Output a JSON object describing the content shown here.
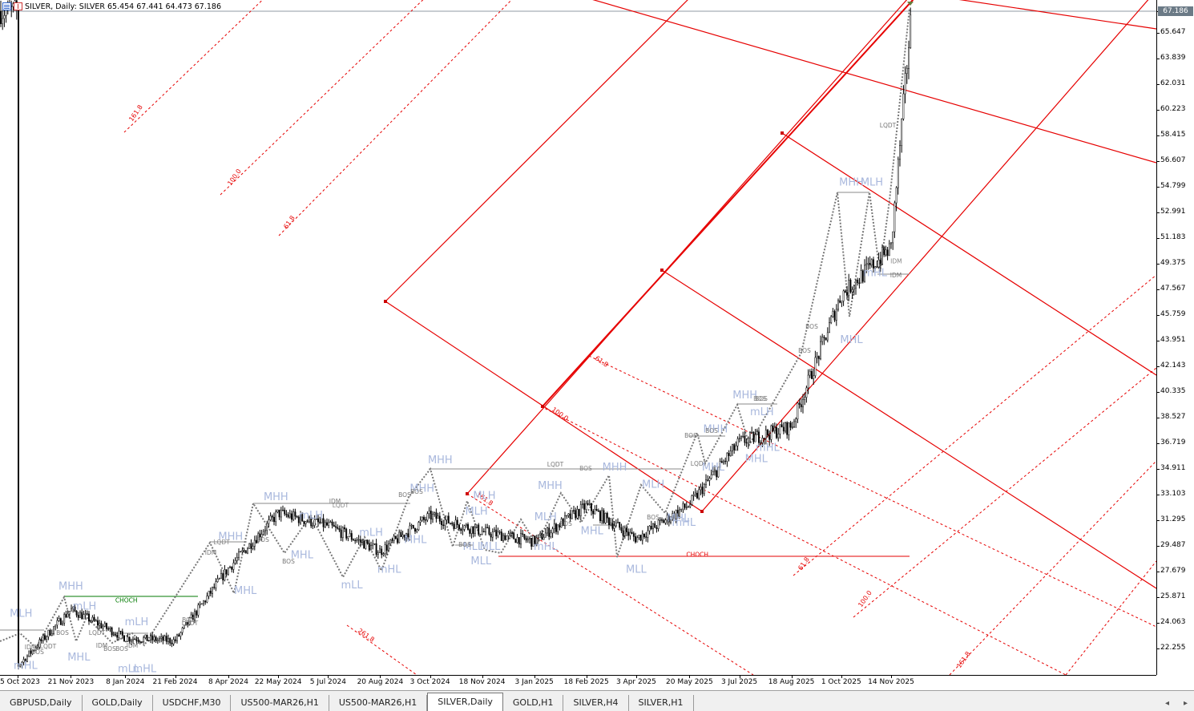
{
  "header": {
    "symbol_text": "SILVER, Daily:  SILVER",
    "ohlc_text": "65.454 67.441 64.473 67.186"
  },
  "price_axis": {
    "labels": [
      "67.186",
      "65.647",
      "63.839",
      "62.031",
      "60.223",
      "58.415",
      "56.607",
      "54.799",
      "52.991",
      "51.183",
      "49.375",
      "47.567",
      "45.759",
      "43.951",
      "42.143",
      "40.335",
      "38.527",
      "36.719",
      "34.911",
      "33.103",
      "31.295",
      "29.487",
      "27.679",
      "25.871",
      "24.063",
      "22.255"
    ],
    "last_price": "67.186",
    "last_price_color": "#6b7a86"
  },
  "time_axis": {
    "labels": [
      "5 Oct 2023",
      "21 Nov 2023",
      "8 Jan 2024",
      "21 Feb 2024",
      "8 Apr 2024",
      "22 May 2024",
      "5 Jul 2024",
      "20 Aug 2024",
      "3 Oct 2024",
      "18 Nov 2024",
      "3 Jan 2025",
      "18 Feb 2025",
      "3 Apr 2025",
      "20 May 2025",
      "3 Jul 2025",
      "18 Aug 2025",
      "1 Oct 2025",
      "14 Nov 2025"
    ]
  },
  "tabs": {
    "items": [
      "GBPUSD,Daily",
      "GOLD,Daily",
      "USDCHF,M30",
      "US500-MAR26,H1",
      "US500-MAR26,H1",
      "SILVER,Daily",
      "GOLD,H1",
      "SILVER,H4",
      "SILVER,H1"
    ],
    "active_index": 5,
    "nav_left": "◂",
    "nav_right": "▸"
  },
  "chart_data": {
    "type": "candlestick",
    "symbol": "SILVER",
    "timeframe": "Daily",
    "last_close": 67.186,
    "ylim": [
      21.2,
      67.5
    ],
    "x_range": [
      "5 Oct 2023",
      "2 Dec 2025"
    ],
    "grid": false,
    "closes_approx": [
      {
        "date": "5 Oct 2023",
        "close": 21.0
      },
      {
        "date": "21 Nov 2023",
        "close": 25.0
      },
      {
        "date": "8 Jan 2024",
        "close": 23.0
      },
      {
        "date": "21 Feb 2024",
        "close": 22.8
      },
      {
        "date": "8 Apr 2024",
        "close": 27.9
      },
      {
        "date": "22 May 2024",
        "close": 31.8
      },
      {
        "date": "5 Jul 2024",
        "close": 30.9
      },
      {
        "date": "20 Aug 2024",
        "close": 29.1
      },
      {
        "date": "3 Oct 2024",
        "close": 31.6
      },
      {
        "date": "18 Nov 2024",
        "close": 30.5
      },
      {
        "date": "3 Jan 2025",
        "close": 29.8
      },
      {
        "date": "18 Feb 2025",
        "close": 32.3
      },
      {
        "date": "3 Apr 2025",
        "close": 30.0
      },
      {
        "date": "20 May 2025",
        "close": 32.4
      },
      {
        "date": "3 Jul 2025",
        "close": 36.8
      },
      {
        "date": "18 Aug 2025",
        "close": 37.9
      },
      {
        "date": "1 Oct 2025",
        "close": 47.2
      },
      {
        "date": "14 Nov 2025",
        "close": 50.5
      },
      {
        "date": "2 Dec 2025",
        "close": 67.186
      }
    ],
    "structure_labels": [
      {
        "text": "MLH",
        "date": "8 Oct 2023",
        "price": 24.5
      },
      {
        "text": "mHL",
        "date": "12 Oct 2023",
        "price": 20.8
      },
      {
        "text": "MHH",
        "date": "21 Nov 2023",
        "price": 26.4
      },
      {
        "text": "mLH",
        "date": "3 Dec 2023",
        "price": 25.0
      },
      {
        "text": "MHL",
        "date": "28 Nov 2023",
        "price": 21.4
      },
      {
        "text": "mLH",
        "date": "18 Jan 2024",
        "price": 23.9
      },
      {
        "text": "mLL",
        "date": "11 Jan 2024",
        "price": 20.6
      },
      {
        "text": "mHL",
        "date": "25 Jan 2024",
        "price": 20.6
      },
      {
        "text": "MHH",
        "date": "10 Apr 2024",
        "price": 29.9
      },
      {
        "text": "MHL",
        "date": "23 Apr 2024",
        "price": 26.1
      },
      {
        "text": "MHH",
        "date": "20 May 2024",
        "price": 32.7
      },
      {
        "text": "mLH",
        "date": "20 Jun 2024",
        "price": 31.4
      },
      {
        "text": "MHL",
        "date": "12 Jun 2024",
        "price": 28.6
      },
      {
        "text": "mLL",
        "date": "26 Jul 2024",
        "price": 26.5
      },
      {
        "text": "mLH",
        "date": "12 Aug 2024",
        "price": 30.2
      },
      {
        "text": "mHL",
        "date": "28 Aug 2024",
        "price": 27.6
      },
      {
        "text": "MHH",
        "date": "26 Sep 2024",
        "price": 33.3
      },
      {
        "text": "MHL",
        "date": "20 Sep 2024",
        "price": 29.7
      },
      {
        "text": "MHH",
        "date": "12 Oct 2024",
        "price": 35.3
      },
      {
        "text": "MLH",
        "date": "13 Nov 2024",
        "price": 31.7
      },
      {
        "text": "MLL",
        "date": "10 Nov 2024",
        "price": 29.2
      },
      {
        "text": "MLL",
        "date": "25 Nov 2024",
        "price": 29.2
      },
      {
        "text": "MLH",
        "date": "20 Nov 2024",
        "price": 32.8
      },
      {
        "text": "MLL",
        "date": "17 Nov 2024",
        "price": 28.2
      },
      {
        "text": "MHH",
        "date": "17 Jan 2025",
        "price": 33.5
      },
      {
        "text": "MLH",
        "date": "13 Jan 2025",
        "price": 31.3
      },
      {
        "text": "mHL",
        "date": "13 Jan 2025",
        "price": 29.2
      },
      {
        "text": "MHL",
        "date": "23 Feb 2025",
        "price": 30.3
      },
      {
        "text": "MHH",
        "date": "15 Mar 2025",
        "price": 34.8
      },
      {
        "text": "MLL",
        "date": "3 Apr 2025",
        "price": 27.6
      },
      {
        "text": "MLH",
        "date": "18 Apr 2025",
        "price": 33.6
      },
      {
        "text": "mHL",
        "date": "15 May 2025",
        "price": 30.9
      },
      {
        "text": "MHL",
        "date": "10 May 2025",
        "price": 31.2
      },
      {
        "text": "MHH",
        "date": "12 Jun 2025",
        "price": 37.5
      },
      {
        "text": "MHL",
        "date": "10 Jun 2025",
        "price": 34.8
      },
      {
        "text": "MHH",
        "date": "8 Jul 2025",
        "price": 39.9
      },
      {
        "text": "mLH",
        "date": "23 Jul 2025",
        "price": 38.7
      },
      {
        "text": "MHL",
        "date": "18 Jul 2025",
        "price": 35.4
      },
      {
        "text": "mHL",
        "date": "28 Jul 2025",
        "price": 36.2
      },
      {
        "text": "MHH",
        "date": "10 Oct 2025",
        "price": 54.9
      },
      {
        "text": "MLH",
        "date": "28 Oct 2025",
        "price": 54.9
      },
      {
        "text": "mHL",
        "date": "31 Oct 2025",
        "price": 48.5
      },
      {
        "text": "MHL",
        "date": "10 Oct 2025",
        "price": 43.8
      }
    ],
    "structure_lines": [
      {
        "label": "CHOCH",
        "from": "21 Nov 2023",
        "to": "27 Feb 2024",
        "price": 25.4,
        "color": "#007a00"
      },
      {
        "label": "LQDT",
        "from": "25 Mar 2024",
        "to": "10 Apr 2024",
        "price": 29.5,
        "color": "#888888"
      },
      {
        "label": "LQDT",
        "from": "5 May 2024",
        "to": "26 Sep 2024",
        "price": 32.1,
        "color": "#888888"
      },
      {
        "label": "BOS",
        "from": "10 Oct 2024",
        "to": "28 Jun 2025",
        "price": 34.7,
        "color": "#888888"
      },
      {
        "label": "CHOCH",
        "from": "1 Dec 2024",
        "to": "20 Nov 2025",
        "price": 28.6,
        "color": "#e60000"
      },
      {
        "label": "BOS",
        "from": "8 Jul 2025",
        "to": "3 Aug 2025",
        "price": 39.6,
        "color": "#888888"
      },
      {
        "label": "IDM",
        "from": "13 Nov 2025",
        "to": "24 Nov 2025",
        "price": 49.3,
        "color": "#888888"
      }
    ],
    "small_labels": [
      "BOS",
      "IDM",
      "LQDT",
      "BOS",
      "IDM",
      "LQDT",
      "BOS",
      "BOS",
      "IDM",
      "LQDT",
      "BOS",
      "IDM",
      "BOS",
      "BOS",
      "IDM",
      "BOS",
      "BOS",
      "BOS",
      "LQDT",
      "BOS",
      "BOS",
      "BOS",
      "LQDT",
      "BOS",
      "BOS",
      "BOS",
      "BOS",
      "LQDT",
      "IDM"
    ],
    "fib_levels": [
      "161.8",
      "100.0",
      "61.8",
      "61.8",
      "100.0",
      "161.8",
      "61.8",
      "100.0",
      "261.8",
      "161.8"
    ],
    "colors": {
      "bull_candle": "#000000",
      "bear_candle": "#000000",
      "structure_text": "#a9b8dd",
      "fib_red": "#e60000",
      "zigzag": "#777777",
      "choch_green": "#007a00",
      "choch_red": "#e60000"
    }
  }
}
